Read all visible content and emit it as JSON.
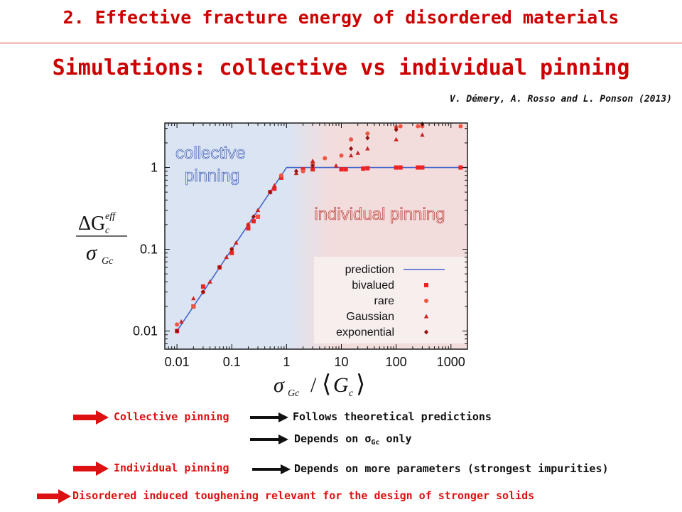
{
  "header": {
    "section_title": "2. Effective fracture energy of disordered materials",
    "slide_title": "Simulations: collective vs individual pinning",
    "citation": "V. Démery, A. Rosso and L. Ponson (2013)"
  },
  "colors": {
    "accent_red": "#dd1111",
    "collective_region": "#dbe4f2",
    "individual_region": "#f3dcdc",
    "prediction_line": "#4466cc",
    "marker_bivalued": "#ee2222",
    "marker_rare": "#ee5544",
    "marker_gaussian": "#cc2222",
    "marker_exponential": "#991111"
  },
  "chart_data": {
    "type": "scatter",
    "x_scale": "log",
    "y_scale": "log",
    "xlim": [
      0.006,
      2000
    ],
    "ylim": [
      0.006,
      3.5
    ],
    "x_ticks": [
      0.01,
      0.1,
      1,
      10,
      100,
      1000
    ],
    "x_tick_labels": [
      "0.01",
      "0.1",
      "1",
      "10",
      "100",
      "1000"
    ],
    "y_ticks": [
      0.01,
      0.1,
      1
    ],
    "y_tick_labels": [
      "0.01",
      "0.1",
      "1"
    ],
    "xlabel": "σGc / ⟨Gc⟩",
    "ylabel": "ΔGc^eff / σGc",
    "regions": [
      {
        "label_line1": "collective",
        "label_line2": "pinning",
        "x_from": 0.006,
        "x_to": 3
      },
      {
        "label": "individual pinning",
        "x_from": 3,
        "x_to": 2000
      }
    ],
    "legend_position": "lower-right",
    "series": [
      {
        "name": "prediction",
        "kind": "line",
        "x": [
          0.01,
          1,
          2000
        ],
        "y": [
          0.01,
          1,
          1
        ]
      },
      {
        "name": "bivalued",
        "kind": "square",
        "x": [
          0.01,
          0.02,
          0.03,
          0.06,
          0.1,
          0.2,
          0.25,
          0.3,
          0.5,
          0.6,
          0.8,
          2,
          3,
          10,
          12,
          25,
          30,
          100,
          120,
          250,
          300,
          1500
        ],
        "y": [
          0.01,
          0.02,
          0.035,
          0.06,
          0.09,
          0.18,
          0.22,
          0.25,
          0.5,
          0.55,
          0.75,
          0.95,
          0.95,
          0.95,
          0.95,
          0.97,
          0.98,
          1,
          1,
          1,
          1,
          1
        ]
      },
      {
        "name": "rare",
        "kind": "circle",
        "x": [
          0.01,
          0.02,
          0.03,
          0.06,
          0.1,
          0.2,
          0.3,
          0.5,
          0.8,
          2,
          3,
          5,
          10,
          15,
          30,
          100,
          120,
          250,
          300,
          1500
        ],
        "y": [
          0.012,
          0.02,
          0.03,
          0.06,
          0.1,
          0.2,
          0.25,
          0.5,
          0.8,
          0.9,
          1.1,
          1.3,
          1.4,
          2.2,
          2.6,
          3.1,
          3.2,
          3.2,
          3.2,
          3.2
        ]
      },
      {
        "name": "Gaussian",
        "kind": "triangle",
        "x": [
          0.012,
          0.02,
          0.04,
          0.08,
          0.12,
          0.2,
          0.3,
          0.6,
          1.5,
          3,
          8,
          15,
          20,
          30,
          100,
          300
        ],
        "y": [
          0.013,
          0.025,
          0.04,
          0.08,
          0.12,
          0.2,
          0.3,
          0.6,
          0.85,
          1.2,
          1.05,
          1.4,
          1.5,
          1.7,
          2.2,
          2.5
        ]
      },
      {
        "name": "exponential",
        "kind": "diamond",
        "x": [
          0.01,
          0.03,
          0.06,
          0.1,
          0.25,
          0.5,
          1.5,
          3,
          15,
          30,
          100,
          300
        ],
        "y": [
          0.01,
          0.03,
          0.06,
          0.1,
          0.25,
          0.5,
          0.9,
          1.05,
          1.7,
          2.3,
          2.9,
          3.4
        ]
      }
    ]
  },
  "conclusions": {
    "collective_label": "Collective pinning",
    "collective_result_1": "Follows theoretical predictions",
    "collective_result_2_prefix": "Depends on ",
    "collective_result_2_symbol": "σ",
    "collective_result_2_sub": "Gc",
    "collective_result_2_suffix": " only",
    "individual_label": "Individual pinning",
    "individual_result": "Depends on more parameters (strongest impurities)",
    "final": "Disordered induced toughening relevant for the design of stronger solids"
  }
}
